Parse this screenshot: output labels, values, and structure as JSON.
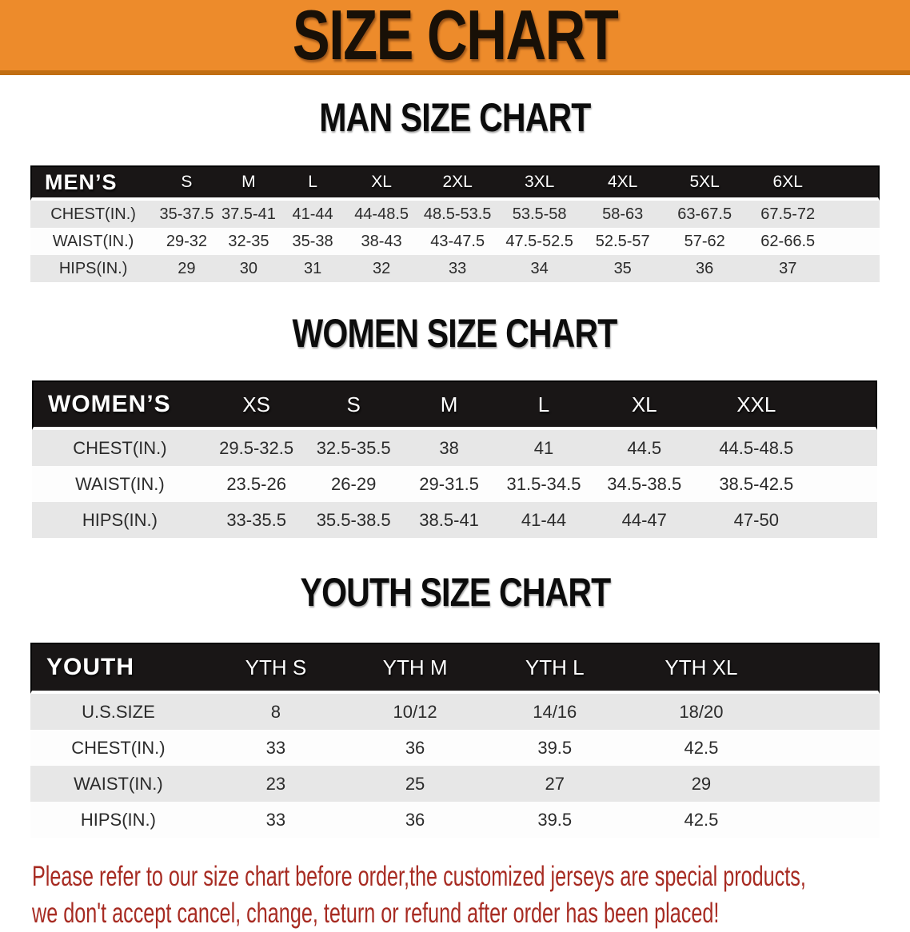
{
  "banner": {
    "title": "SIZE CHART"
  },
  "headings": {
    "men": "MAN SIZE CHART",
    "women": "WOMEN SIZE CHART",
    "youth": "YOUTH SIZE CHART"
  },
  "tables": {
    "men": {
      "corner_label": "MEN’S",
      "columns": [
        "S",
        "M",
        "L",
        "XL",
        "2XL",
        "3XL",
        "4XL",
        "5XL",
        "6XL"
      ],
      "rows": [
        {
          "label": "CHEST(IN.)",
          "values": [
            "35-37.5",
            "37.5-41",
            "41-44",
            "44-48.5",
            "48.5-53.5",
            "53.5-58",
            "58-63",
            "63-67.5",
            "67.5-72"
          ]
        },
        {
          "label": "WAIST(IN.)",
          "values": [
            "29-32",
            "32-35",
            "35-38",
            "38-43",
            "43-47.5",
            "47.5-52.5",
            "52.5-57",
            "57-62",
            "62-66.5"
          ]
        },
        {
          "label": "HIPS(IN.)",
          "values": [
            "29",
            "30",
            "31",
            "32",
            "33",
            "34",
            "35",
            "36",
            "37"
          ]
        }
      ]
    },
    "women": {
      "corner_label": "WOMEN’S",
      "columns": [
        "XS",
        "S",
        "M",
        "L",
        "XL",
        "XXL"
      ],
      "rows": [
        {
          "label": "CHEST(IN.)",
          "values": [
            "29.5-32.5",
            "32.5-35.5",
            "38",
            "41",
            "44.5",
            "44.5-48.5"
          ]
        },
        {
          "label": "WAIST(IN.)",
          "values": [
            "23.5-26",
            "26-29",
            "29-31.5",
            "31.5-34.5",
            "34.5-38.5",
            "38.5-42.5"
          ]
        },
        {
          "label": "HIPS(IN.)",
          "values": [
            "33-35.5",
            "35.5-38.5",
            "38.5-41",
            "41-44",
            "44-47",
            "47-50"
          ]
        }
      ]
    },
    "youth": {
      "corner_label": "YOUTH",
      "columns": [
        "YTH S",
        "YTH M",
        "YTH L",
        "YTH XL"
      ],
      "rows": [
        {
          "label": "U.S.SIZE",
          "values": [
            "8",
            "10/12",
            "14/16",
            "18/20"
          ]
        },
        {
          "label": "CHEST(IN.)",
          "values": [
            "33",
            "36",
            "39.5",
            "42.5"
          ]
        },
        {
          "label": "WAIST(IN.)",
          "values": [
            "23",
            "25",
            "27",
            "29"
          ]
        },
        {
          "label": "HIPS(IN.)",
          "values": [
            "33",
            "36",
            "39.5",
            "42.5"
          ]
        }
      ]
    }
  },
  "disclaimer": {
    "line1": "Please refer to our size chart before order,the customized jerseys are special products,",
    "line2": "we don't accept cancel, change, teturn or refund after order has been placed!"
  },
  "colors": {
    "banner_orange": "#ED8B2B",
    "banner_edge": "#C16E12",
    "header_black": "#191616",
    "row_gray": "#E7E7E7",
    "row_white": "#FDFDFD",
    "disclaimer_red": "#A72B22",
    "title_black": "#181007"
  }
}
